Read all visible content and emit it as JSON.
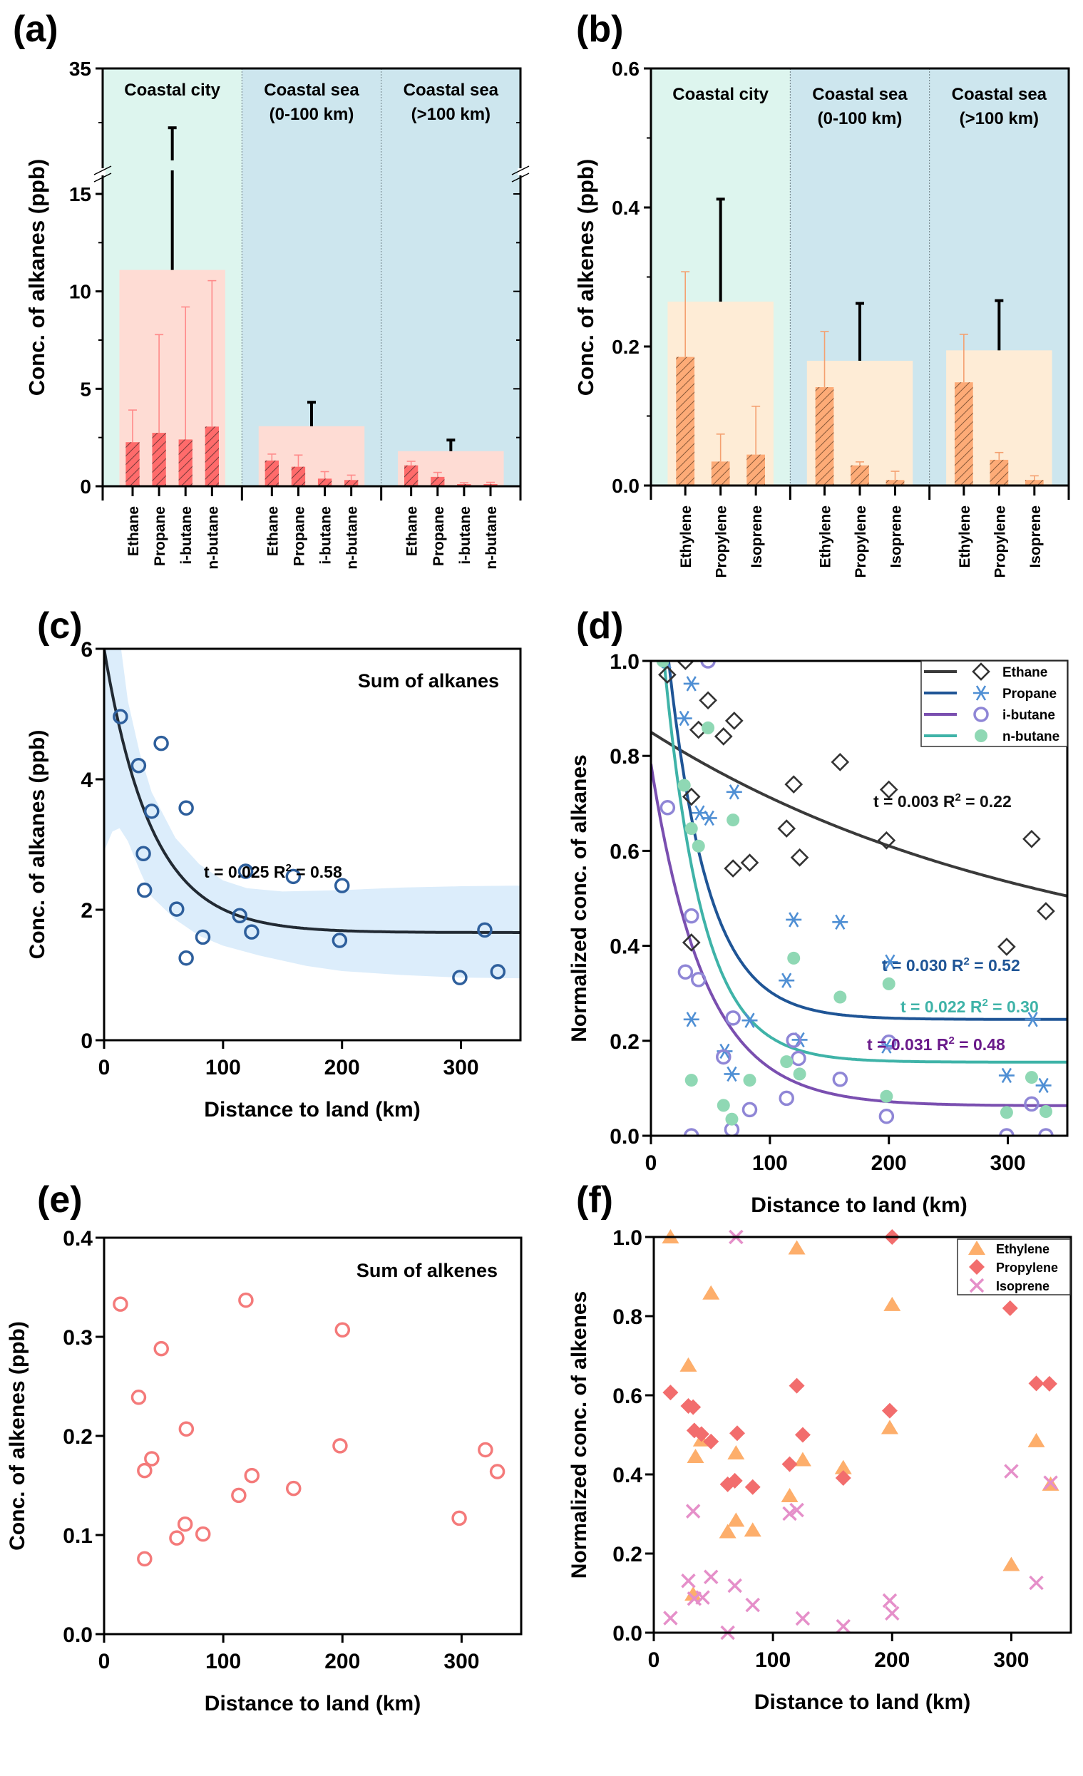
{
  "figure": {
    "panel_labels": [
      "(a)",
      "(b)",
      "(c)",
      "(d)",
      "(e)",
      "(f)"
    ]
  },
  "chart_data": [
    {
      "panel": "(a)",
      "type": "bar",
      "ylabel": "Conc. of alkanes (ppb)",
      "ylim": [
        0,
        35
      ],
      "y_axis_break": [
        16,
        20
      ],
      "yticks": [
        "0",
        "5",
        "10",
        "15",
        "35"
      ],
      "groups": [
        {
          "name": "Coastal city",
          "name_lines": [
            "Coastal city"
          ],
          "background": "#ddf5ee",
          "categories": [
            "Ethane",
            "Propane",
            "i-butane",
            "n-butane"
          ],
          "values": [
            2.26,
            2.74,
            2.4,
            3.06
          ],
          "errors_upper": [
            3.91,
            7.78,
            9.2,
            10.55
          ],
          "sum": 11.1,
          "sum_error_upper": 27.0
        },
        {
          "name": "Coastal sea (0-100 km)",
          "name_lines": [
            "Coastal sea",
            "(0-100 km)"
          ],
          "background": "#cde6ee",
          "categories": [
            "Ethane",
            "Propane",
            "i-butane",
            "n-butane"
          ],
          "values": [
            1.32,
            1.0,
            0.39,
            0.32
          ],
          "errors_upper": [
            1.65,
            1.6,
            0.75,
            0.57
          ],
          "sum": 3.08,
          "sum_error_upper": 4.31
        },
        {
          "name": "Coastal sea (>100 km)",
          "name_lines": [
            "Coastal sea",
            "(>100 km)"
          ],
          "background": "#cde6ee",
          "categories": [
            "Ethane",
            "Propane",
            "i-butane",
            "n-butane"
          ],
          "values": [
            1.07,
            0.48,
            0.11,
            0.11
          ],
          "errors_upper": [
            1.28,
            0.71,
            0.18,
            0.2
          ],
          "sum": 1.8,
          "sum_error_upper": 2.37
        }
      ],
      "colors": {
        "bar": "#ff6b6b",
        "sum_bar": "#fedcd4",
        "error": "#ff8a8a",
        "sum_error": "#000000"
      }
    },
    {
      "panel": "(b)",
      "type": "bar",
      "ylabel": "Conc. of alkenes (ppb)",
      "ylim": [
        0,
        0.6
      ],
      "yticks": [
        "0.0",
        "0.2",
        "0.4",
        "0.6"
      ],
      "groups": [
        {
          "name": "Coastal city",
          "name_lines": [
            "Coastal city"
          ],
          "background": "#ddf5ee",
          "categories": [
            "Ethylene",
            "Propylene",
            "Isoprene"
          ],
          "values": [
            0.185,
            0.0345,
            0.0445
          ],
          "errors_upper": [
            0.3075,
            0.074,
            0.114
          ],
          "sum": 0.2645,
          "sum_error_upper": 0.412
        },
        {
          "name": "Coastal sea (0-100 km)",
          "name_lines": [
            "Coastal sea",
            "(0-100 km)"
          ],
          "background": "#cde6ee",
          "categories": [
            "Ethylene",
            "Propylene",
            "Isoprene"
          ],
          "values": [
            0.1415,
            0.029,
            0.008
          ],
          "errors_upper": [
            0.2215,
            0.034,
            0.0205
          ],
          "sum": 0.1795,
          "sum_error_upper": 0.262
        },
        {
          "name": "Coastal sea (>100 km)",
          "name_lines": [
            "Coastal sea",
            "(>100 km)"
          ],
          "background": "#cde6ee",
          "categories": [
            "Ethylene",
            "Propylene",
            "Isoprene"
          ],
          "values": [
            0.1485,
            0.037,
            0.008
          ],
          "errors_upper": [
            0.2175,
            0.0475,
            0.014
          ],
          "sum": 0.1945,
          "sum_error_upper": 0.266
        }
      ],
      "colors": {
        "bar": "#fdab77",
        "sum_bar": "#feecd6",
        "error": "#f4a070",
        "sum_error": "#000000"
      }
    },
    {
      "panel": "(c)",
      "type": "scatter",
      "annotation": "Sum of alkanes",
      "xlabel": "Distance to land (km)",
      "ylabel": "Conc. of alkanes (ppb)",
      "xlim": [
        0,
        350
      ],
      "ylim": [
        0,
        6
      ],
      "xticks": [
        "0",
        "100",
        "200",
        "300"
      ],
      "yticks": [
        "0",
        "2",
        "4",
        "6"
      ],
      "fit_label": {
        "t": "t = 0.025",
        "r2": " R",
        "r2_sup": "2",
        "r2_val": " = 0.58"
      },
      "fit": {
        "model": "y = a + b*exp(-t*x)",
        "a": 1.65,
        "b": 4.35,
        "t": 0.025,
        "R2": 0.58
      },
      "confidence_band": {
        "upper": [
          [
            0,
            8
          ],
          [
            10,
            6.6
          ],
          [
            20,
            5.2
          ],
          [
            30,
            4.4
          ],
          [
            40,
            3.8
          ],
          [
            60,
            3.1
          ],
          [
            80,
            2.7
          ],
          [
            100,
            2.45
          ],
          [
            120,
            2.33
          ],
          [
            150,
            2.28
          ],
          [
            200,
            2.3
          ],
          [
            250,
            2.34
          ],
          [
            300,
            2.36
          ],
          [
            350,
            2.37
          ]
        ],
        "lower": [
          [
            0,
            2.9
          ],
          [
            7,
            3.2
          ],
          [
            13,
            3.25
          ],
          [
            20,
            3.05
          ],
          [
            30,
            2.6
          ],
          [
            40,
            2.2
          ],
          [
            60,
            1.85
          ],
          [
            80,
            1.6
          ],
          [
            100,
            1.45
          ],
          [
            130,
            1.3
          ],
          [
            170,
            1.14
          ],
          [
            200,
            1.06
          ],
          [
            250,
            1.0
          ],
          [
            300,
            0.96
          ],
          [
            350,
            0.95
          ]
        ]
      },
      "series": [
        {
          "name": "Sum of alkanes",
          "x": [
            13.7,
            29,
            48,
            40,
            69,
            33,
            34,
            61,
            69,
            83,
            114,
            119,
            124,
            159,
            200,
            198,
            299,
            320,
            331
          ],
          "y": [
            4.96,
            4.21,
            4.55,
            3.51,
            3.56,
            2.86,
            2.3,
            2.01,
            1.26,
            1.58,
            1.91,
            2.59,
            1.66,
            2.51,
            2.37,
            1.53,
            0.96,
            1.69,
            1.05
          ]
        }
      ],
      "colors": {
        "marker": "#2e5f9c",
        "fit": "#222a33",
        "band": "#dcedfb"
      }
    },
    {
      "panel": "(d)",
      "type": "scatter",
      "xlabel": "Distance to land (km)",
      "ylabel": "Normalized conc. of alkanes",
      "xlim": [
        0,
        350
      ],
      "ylim": [
        0,
        1.0
      ],
      "xticks": [
        "0",
        "100",
        "200",
        "300"
      ],
      "yticks": [
        "0.0",
        "0.2",
        "0.4",
        "0.6",
        "0.8",
        "1.0"
      ],
      "legend_position": "top-right",
      "series": [
        {
          "name": "Ethane",
          "marker": "open-diamond",
          "color": "#333333",
          "line_color": "#3a3a3a",
          "fit": {
            "a": 0.319,
            "b": 0.531,
            "t": 0.003,
            "R2": 0.22
          },
          "fit_label": {
            "t": "t = 0.003",
            "r2_val": " = 0.22"
          },
          "x": [
            13.7,
            29,
            48,
            40,
            61,
            70,
            34,
            34,
            69,
            83,
            114,
            120,
            125,
            159,
            200,
            198,
            299,
            320,
            332
          ],
          "y": [
            0.971,
            1.0,
            0.917,
            0.855,
            0.841,
            0.874,
            0.714,
            0.407,
            0.563,
            0.575,
            0.647,
            0.74,
            0.586,
            0.787,
            0.729,
            0.622,
            0.398,
            0.625,
            0.473
          ]
        },
        {
          "name": "Propane",
          "marker": "asterisk",
          "color": "#4f8fd4",
          "line_color": "#1f5596",
          "fit": {
            "a": 0.245,
            "b": 1.18,
            "t": 0.03,
            "R2": 0.52
          },
          "fit_label": {
            "t": "t = 0.030",
            "r2_val": " = 0.52"
          },
          "x": [
            13,
            34,
            28,
            70,
            41,
            49,
            34,
            62,
            68,
            83,
            114,
            120,
            125,
            159,
            201,
            198,
            299,
            321,
            330
          ],
          "y": [
            1.0,
            0.952,
            0.879,
            0.724,
            0.68,
            0.669,
            0.245,
            0.178,
            0.13,
            0.243,
            0.327,
            0.455,
            0.202,
            0.45,
            0.366,
            0.189,
            0.127,
            0.245,
            0.106
          ]
        },
        {
          "name": "i-butane",
          "marker": "open-circle",
          "color": "#8f86d6",
          "line_color": "#7a4fb0",
          "fit": {
            "a": 0.063,
            "b": 0.72,
            "t": 0.022,
            "R2": 0.3
          },
          "fit_label": {
            "t": "t = 0.022",
            "r2_val": " = 0.30"
          },
          "x": [
            48,
            14,
            34,
            29,
            40,
            69,
            61,
            68,
            34,
            83,
            114,
            120,
            124,
            159,
            200,
            198,
            299,
            320,
            332
          ],
          "y": [
            1.0,
            0.691,
            0.463,
            0.345,
            0.329,
            0.248,
            0.166,
            0.013,
            0.0,
            0.055,
            0.079,
            0.201,
            0.163,
            0.119,
            0.197,
            0.041,
            0.0,
            0.067,
            0.0
          ]
        },
        {
          "name": "n-butane",
          "marker": "filled-circle",
          "color": "#8fd8b4",
          "line_color": "#3fb3a8",
          "fit": {
            "a": 0.155,
            "b": 1.19,
            "t": 0.031,
            "R2": 0.48
          },
          "fit_label": {
            "t": "t = 0.031",
            "r2_val": " = 0.48"
          },
          "x": [
            10,
            48,
            28,
            34,
            40,
            69,
            34,
            61,
            68,
            83,
            114,
            120,
            125,
            159,
            200,
            198,
            299,
            320,
            332
          ],
          "y": [
            1.0,
            0.859,
            0.738,
            0.647,
            0.61,
            0.665,
            0.117,
            0.064,
            0.035,
            0.117,
            0.156,
            0.374,
            0.13,
            0.292,
            0.32,
            0.083,
            0.049,
            0.123,
            0.051
          ]
        }
      ],
      "fit_label_colors": [
        "#111111",
        "#1f5596",
        "#3fb3a8",
        "#6a1a8a"
      ]
    },
    {
      "panel": "(e)",
      "type": "scatter",
      "annotation": "Sum of alkenes",
      "xlabel": "Distance to land (km)",
      "ylabel": "Conc. of alkenes (ppb)",
      "xlim": [
        0,
        350
      ],
      "ylim": [
        0,
        0.4
      ],
      "xticks": [
        "0",
        "100",
        "200",
        "300"
      ],
      "yticks": [
        "0.0",
        "0.1",
        "0.2",
        "0.3",
        "0.4"
      ],
      "series": [
        {
          "name": "Sum of alkenes",
          "x": [
            13.7,
            29,
            48,
            40,
            34,
            69,
            34,
            68,
            61,
            83,
            113,
            119,
            124,
            159,
            200,
            198,
            298,
            320,
            330
          ],
          "y": [
            0.333,
            0.239,
            0.288,
            0.177,
            0.165,
            0.207,
            0.076,
            0.111,
            0.097,
            0.101,
            0.14,
            0.337,
            0.16,
            0.147,
            0.307,
            0.19,
            0.117,
            0.186,
            0.164
          ]
        }
      ],
      "colors": {
        "marker": "#f47a7a"
      }
    },
    {
      "panel": "(f)",
      "type": "scatter",
      "xlabel": "Distance to land (km)",
      "ylabel": "Normalized conc. of alkenes",
      "xlim": [
        0,
        350
      ],
      "ylim": [
        0,
        1.0
      ],
      "xticks": [
        "0",
        "100",
        "200",
        "300"
      ],
      "yticks": [
        "0.0",
        "0.2",
        "0.4",
        "0.6",
        "0.8",
        "1.0"
      ],
      "legend_position": "top-right",
      "series": [
        {
          "name": "Ethylene",
          "marker": "triangle",
          "color": "#fdae6b",
          "x": [
            14,
            120,
            48,
            200,
            29,
            198,
            40,
            35,
            69,
            125,
            159,
            114,
            69,
            62,
            83,
            300,
            321,
            333,
            33
          ],
          "y": [
            1.0,
            0.972,
            0.858,
            0.829,
            0.676,
            0.518,
            0.487,
            0.445,
            0.454,
            0.437,
            0.417,
            0.346,
            0.284,
            0.255,
            0.259,
            0.172,
            0.485,
            0.375,
            0.097
          ]
        },
        {
          "name": "Propylene",
          "marker": "diamond",
          "color": "#f26d6d",
          "x": [
            14,
            29,
            33,
            34,
            40,
            48,
            70,
            62,
            68,
            83,
            114,
            120,
            125,
            159,
            198,
            200,
            299,
            321,
            332
          ],
          "y": [
            0.607,
            0.573,
            0.57,
            0.511,
            0.502,
            0.483,
            0.504,
            0.375,
            0.384,
            0.368,
            0.426,
            0.624,
            0.5,
            0.391,
            0.561,
            1.0,
            0.82,
            0.63,
            0.629
          ]
        },
        {
          "name": "Isoprene",
          "marker": "cross",
          "color": "#e58fc9",
          "x": [
            14,
            29,
            33,
            34,
            41,
            48,
            68,
            69,
            62,
            83,
            114,
            120,
            125,
            159,
            198,
            200,
            300,
            321,
            333
          ],
          "y": [
            0.037,
            0.131,
            0.307,
            0.086,
            0.089,
            0.141,
            0.119,
            1.0,
            0.0,
            0.07,
            0.301,
            0.31,
            0.036,
            0.016,
            0.081,
            0.049,
            0.408,
            0.126,
            0.379
          ]
        }
      ]
    }
  ]
}
